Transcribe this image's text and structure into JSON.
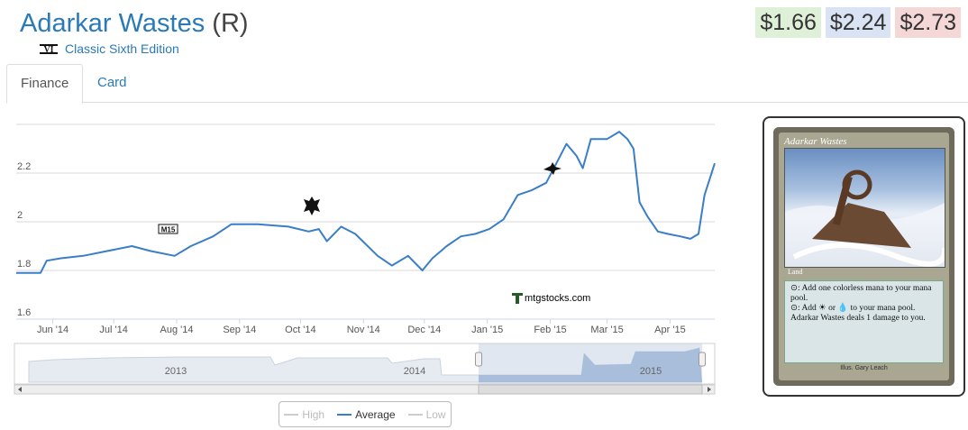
{
  "card": {
    "name": "Adarkar Wastes",
    "rarity": "(R)",
    "set_name": "Classic Sixth Edition",
    "set_icon": "sixth-edition-set-icon"
  },
  "prices": [
    {
      "value": "$1.66",
      "color": "#dff0d8"
    },
    {
      "value": "$2.24",
      "color": "#d9e3f4"
    },
    {
      "value": "$2.73",
      "color": "#f4d7d7"
    }
  ],
  "tabs": {
    "finance": "Finance",
    "card": "Card"
  },
  "watermark": "mtgstocks.com",
  "legend": {
    "high": "High",
    "average": "Average",
    "low": "Low"
  },
  "colors": {
    "average": "#3a7ec8",
    "grid": "#d8d8d8",
    "link": "#2a7ab8",
    "navigator_fill": "#c6d4e6"
  },
  "card_image": {
    "title": "Adarkar Wastes",
    "type_line": "Land",
    "rules_text_1": "⊙: Add one colorless mana to your mana pool.",
    "rules_text_2": "⊙: Add ☀ or 💧 to your mana pool. Adarkar Wastes deals 1 damage to you.",
    "illustrator": "Illus. Gary Leach"
  },
  "chart_data": {
    "type": "line",
    "title": "",
    "xlabel": "",
    "ylabel": "",
    "ylim": [
      1.6,
      2.4
    ],
    "yticks": [
      1.6,
      1.8,
      2.0,
      2.2
    ],
    "ytick_labels": [
      "1.6",
      "1.8",
      "2",
      "2.2"
    ],
    "xlim": [
      "2014-05-14",
      "2015-04-23"
    ],
    "xticks": [
      "2014-06-01",
      "2014-07-01",
      "2014-08-01",
      "2014-09-01",
      "2014-10-01",
      "2014-11-01",
      "2014-12-01",
      "2015-01-01",
      "2015-02-01",
      "2015-03-01",
      "2015-04-01"
    ],
    "xtick_labels": [
      "Jun '14",
      "Jul '14",
      "Aug '14",
      "Sep '14",
      "Oct '14",
      "Nov '14",
      "Dec '14",
      "Jan '15",
      "Feb '15",
      "Mar '15",
      "Apr '15"
    ],
    "grid": true,
    "legend_position": "bottom-center",
    "series": [
      {
        "name": "Average",
        "x": [
          "2014-05-14",
          "2014-05-26",
          "2014-05-29",
          "2014-06-05",
          "2014-06-16",
          "2014-06-28",
          "2014-07-10",
          "2014-07-19",
          "2014-07-31",
          "2014-08-08",
          "2014-08-19",
          "2014-08-28",
          "2014-09-10",
          "2014-09-25",
          "2014-10-05",
          "2014-10-10",
          "2014-10-14",
          "2014-10-21",
          "2014-10-28",
          "2014-11-08",
          "2014-11-15",
          "2014-11-23",
          "2014-11-30",
          "2014-12-05",
          "2014-12-12",
          "2014-12-19",
          "2014-12-26",
          "2015-01-02",
          "2015-01-09",
          "2015-01-16",
          "2015-01-23",
          "2015-01-30",
          "2015-02-04",
          "2015-02-09",
          "2015-02-14",
          "2015-02-17",
          "2015-02-21",
          "2015-03-01",
          "2015-03-07",
          "2015-03-11",
          "2015-03-14",
          "2015-03-17",
          "2015-03-21",
          "2015-03-26",
          "2015-03-31",
          "2015-04-06",
          "2015-04-11",
          "2015-04-15",
          "2015-04-18",
          "2015-04-23"
        ],
        "values": [
          1.79,
          1.79,
          1.84,
          1.85,
          1.86,
          1.88,
          1.9,
          1.88,
          1.86,
          1.9,
          1.94,
          1.99,
          1.99,
          1.98,
          1.96,
          1.97,
          1.92,
          1.98,
          1.95,
          1.86,
          1.82,
          1.86,
          1.8,
          1.85,
          1.9,
          1.94,
          1.95,
          1.97,
          2.01,
          2.11,
          2.13,
          2.16,
          2.24,
          2.32,
          2.27,
          2.22,
          2.34,
          2.34,
          2.37,
          2.34,
          2.3,
          2.08,
          2.02,
          1.96,
          1.95,
          1.94,
          1.93,
          1.95,
          2.11,
          2.24
        ]
      }
    ],
    "navigator": {
      "tick_labels": [
        "2013",
        "2014",
        "2015"
      ],
      "selected_range": [
        "2014-05-14",
        "2015-04-23"
      ]
    }
  }
}
